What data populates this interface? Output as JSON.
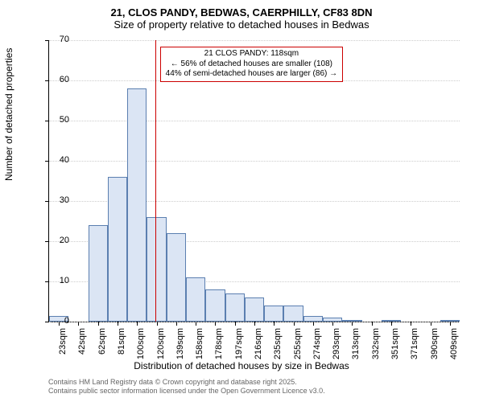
{
  "title_main": "21, CLOS PANDY, BEDWAS, CAERPHILLY, CF83 8DN",
  "title_sub": "Size of property relative to detached houses in Bedwas",
  "ylabel": "Number of detached properties",
  "xlabel": "Distribution of detached houses by size in Bedwas",
  "chart": {
    "type": "histogram",
    "background_color": "#ffffff",
    "grid_color": "#cccccc",
    "bar_fill": "#dbe5f4",
    "bar_border": "#5b7fb0",
    "axis_color": "#000000",
    "annotation_border": "#cc0000",
    "vline_color": "#cc0000",
    "y": {
      "min": 0,
      "max": 70,
      "tick_step": 10,
      "ticks": [
        0,
        10,
        20,
        30,
        40,
        50,
        60,
        70
      ]
    },
    "x": {
      "labels": [
        "23sqm",
        "42sqm",
        "62sqm",
        "81sqm",
        "100sqm",
        "120sqm",
        "139sqm",
        "158sqm",
        "178sqm",
        "197sqm",
        "216sqm",
        "235sqm",
        "255sqm",
        "274sqm",
        "293sqm",
        "313sqm",
        "332sqm",
        "351sqm",
        "371sqm",
        "390sqm",
        "409sqm"
      ]
    },
    "bars": [
      1.5,
      0,
      24,
      36,
      58,
      26,
      22,
      11,
      8,
      7,
      6,
      4,
      4,
      1.5,
      1,
      0.5,
      0,
      0.5,
      0,
      0,
      0.5
    ],
    "annotation": {
      "line1": "21 CLOS PANDY: 118sqm",
      "line2": "← 56% of detached houses are smaller (108)",
      "line3": "44% of semi-detached houses are larger (86) →",
      "x_value": 118
    }
  },
  "footer": {
    "line1": "Contains HM Land Registry data © Crown copyright and database right 2025.",
    "line2": "Contains public sector information licensed under the Open Government Licence v3.0."
  }
}
